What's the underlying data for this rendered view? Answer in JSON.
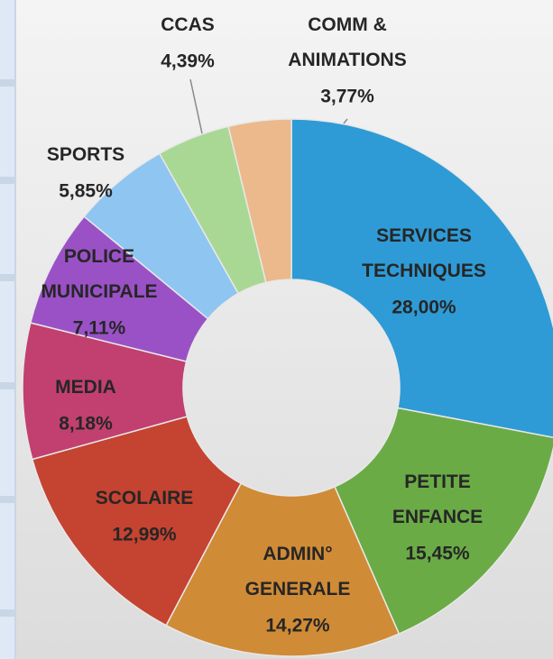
{
  "chart_data": {
    "type": "donut",
    "categories": [
      "SERVICES\nTECHNIQUES",
      "PETITE\nENFANCE",
      "ADMIN°\nGENERALE",
      "SCOLAIRE",
      "MEDIA",
      "POLICE\nMUNICIPALE",
      "SPORTS",
      "CCAS",
      "COMM &\nANIMATIONS"
    ],
    "values": [
      28.0,
      15.45,
      14.27,
      12.99,
      8.18,
      7.11,
      5.85,
      4.39,
      3.77
    ],
    "value_labels": [
      "28,00%",
      "15,45%",
      "14,27%",
      "12,99%",
      "8,18%",
      "7,11%",
      "5,85%",
      "4,39%",
      "3,77%"
    ],
    "colors": [
      "#2e9bd6",
      "#6aab46",
      "#d08b36",
      "#c54331",
      "#c1406f",
      "#9a51c6",
      "#8ec5f1",
      "#a9d894",
      "#ebb98b"
    ]
  }
}
